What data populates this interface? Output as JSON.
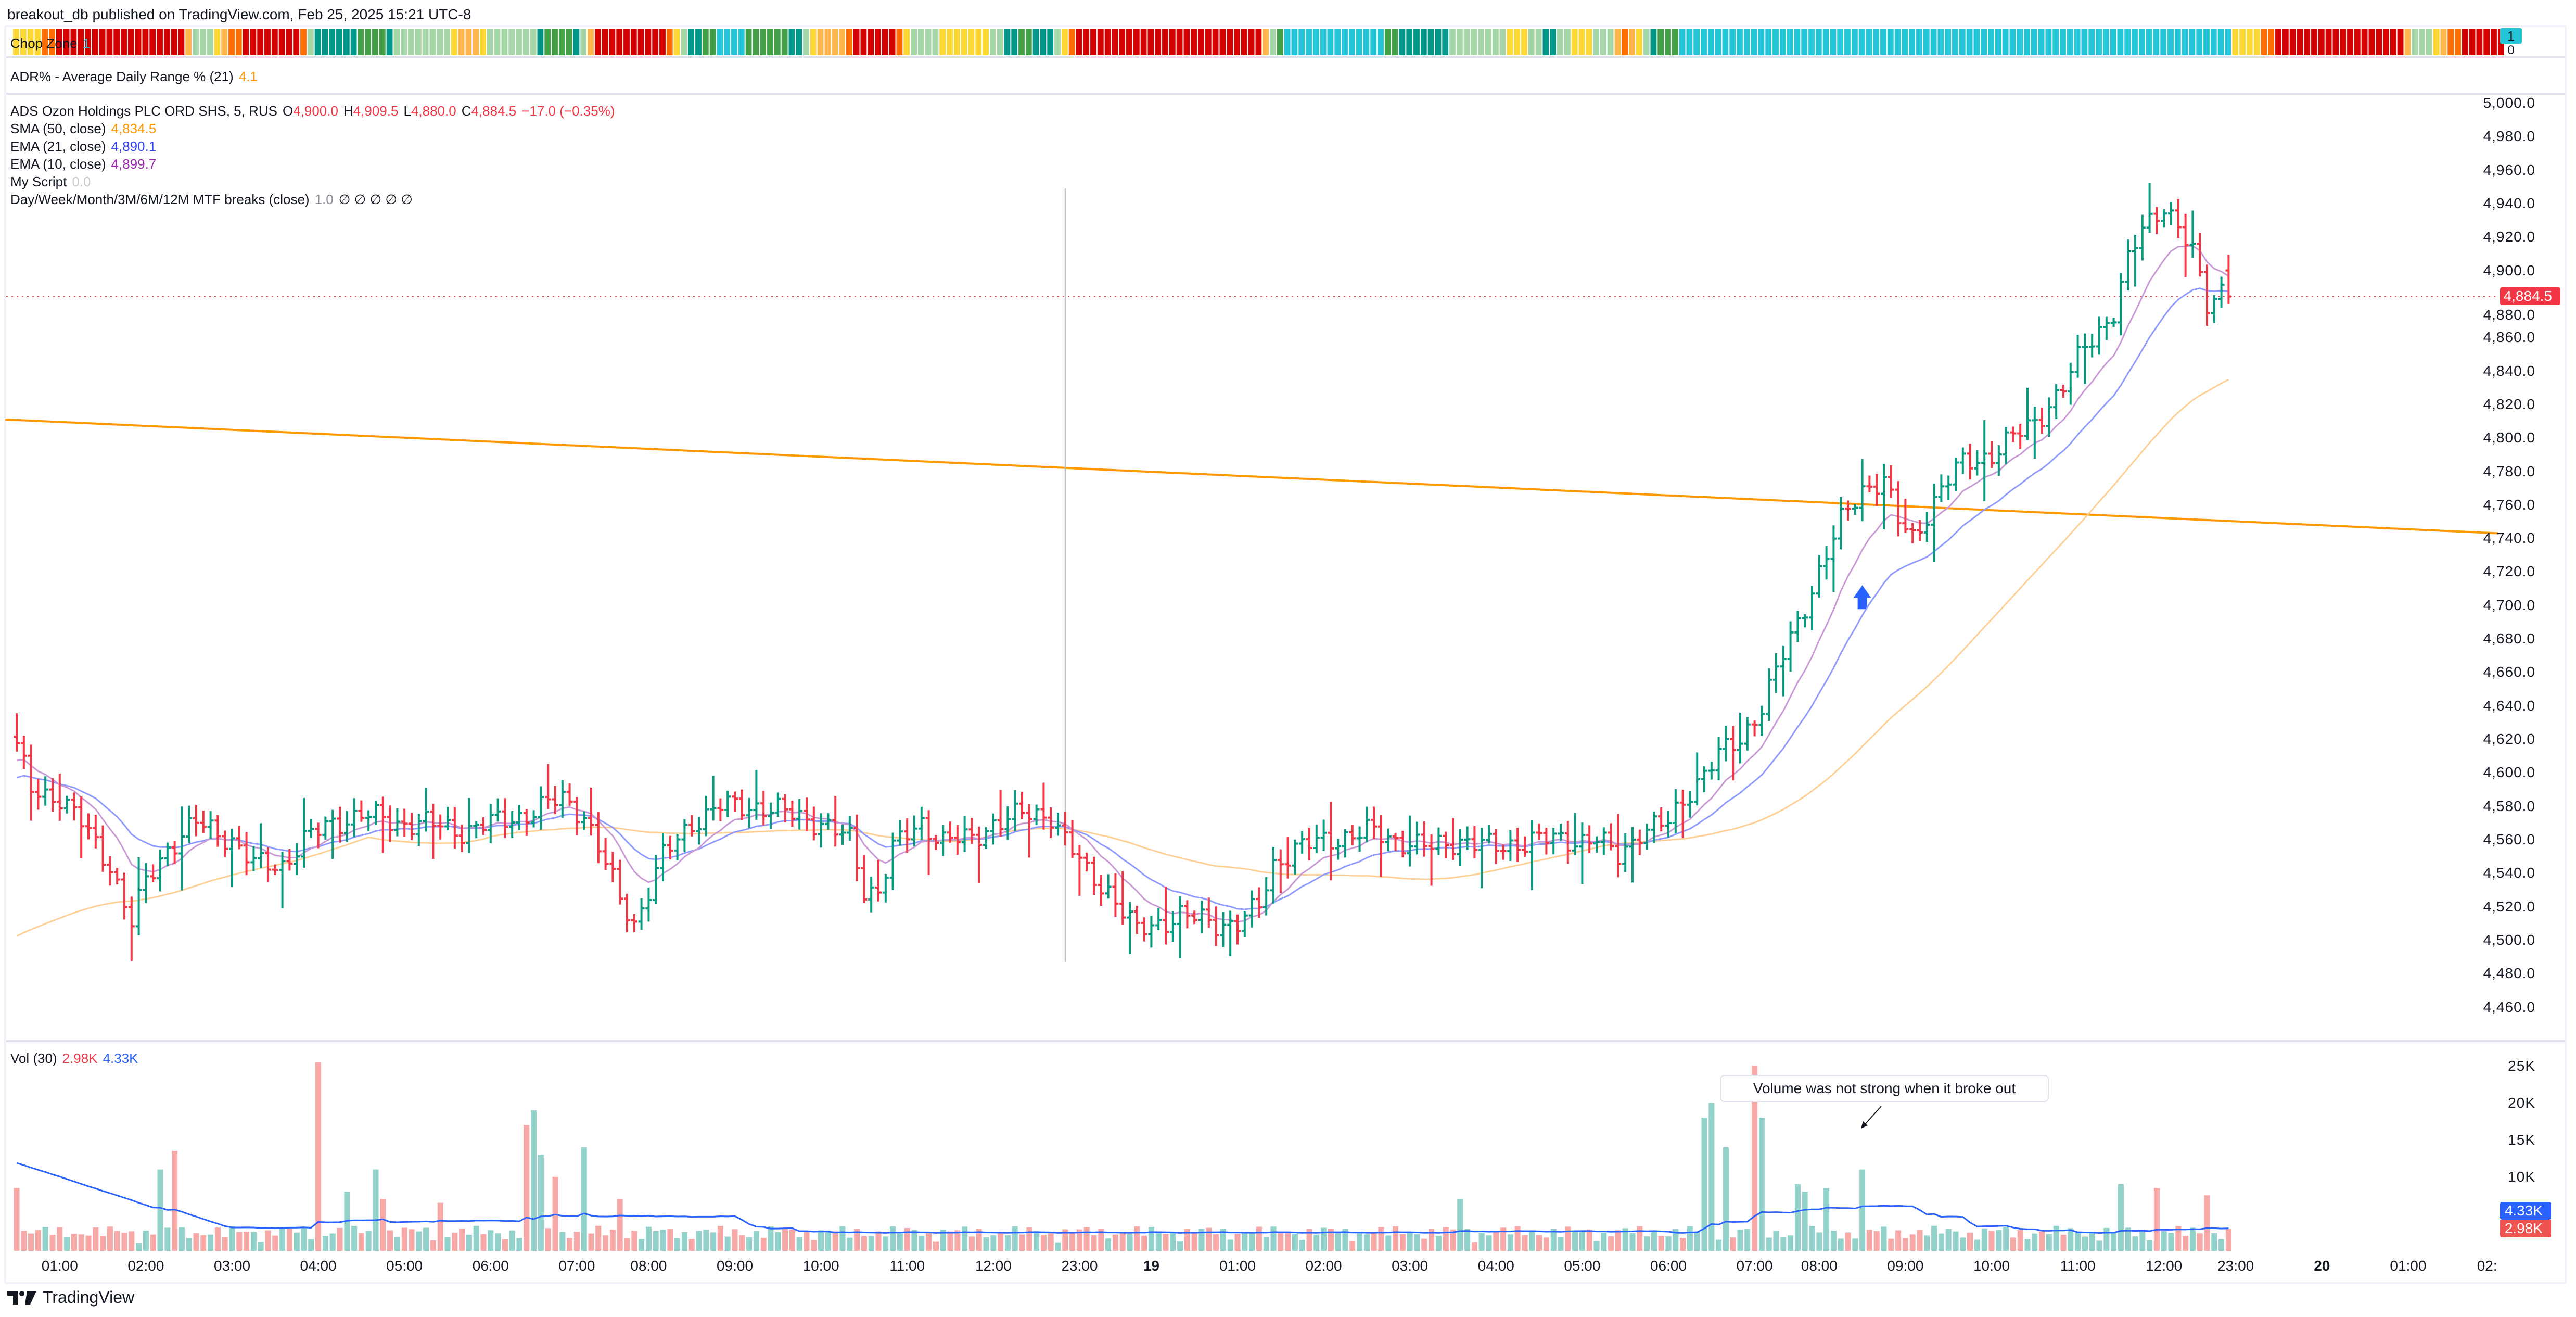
{
  "header": {
    "title": "breakout_db published on TradingView.com, Feb 25, 2025 15:21 UTC-8"
  },
  "chop_zone": {
    "label": "Chop Zone",
    "value": "1",
    "axis_top": "1",
    "axis_bottom": "0",
    "colors": {
      "cyan": "#26c6da",
      "dark_green": "#43a047",
      "teal": "#009688",
      "light_green": "#a5d6a7",
      "yellow": "#fdd835",
      "light_orange": "#ffb74d",
      "dark_orange": "#ff6d00",
      "red": "#d50000"
    }
  },
  "adr": {
    "label": "ADR% - Average Daily Range % (21)",
    "value": "4.1"
  },
  "legend": {
    "symbol": "ADS Ozon Holdings PLC ORD SHS, 5, RUS",
    "o_label": "O",
    "o": "4,900.0",
    "h_label": "H",
    "h": "4,909.5",
    "l_label": "L",
    "l": "4,880.0",
    "c_label": "C",
    "c": "4,884.5",
    "change": "−17.0 (−0.35%)",
    "sma50": {
      "label": "SMA (50, close)",
      "value": "4,834.5"
    },
    "ema21": {
      "label": "EMA (21, close)",
      "value": "4,890.1"
    },
    "ema10": {
      "label": "EMA (10, close)",
      "value": "4,899.7"
    },
    "my_script": {
      "label": "My Script",
      "value": "0.0"
    },
    "mtf": {
      "label": "Day/Week/Month/3M/6M/12M MTF breaks (close)",
      "value": "1.0",
      "flags": "∅ ∅ ∅ ∅ ∅"
    }
  },
  "price_axis": {
    "ticks": [
      5000,
      4980,
      4960,
      4940,
      4920,
      4900,
      4880,
      4860,
      4840,
      4820,
      4800,
      4780,
      4760,
      4740,
      4720,
      4700,
      4680,
      4660,
      4640,
      4620,
      4600,
      4580,
      4560,
      4540,
      4520,
      4500,
      4480,
      4460
    ],
    "tick_labels": [
      "5,000.0",
      "4,980.0",
      "4,960.0",
      "4,940.0",
      "4,920.0",
      "4,900.0",
      "4,880.0",
      "4,860.0",
      "4,840.0",
      "4,820.0",
      "4,800.0",
      "4,780.0",
      "4,760.0",
      "4,740.0",
      "4,720.0",
      "4,700.0",
      "4,680.0",
      "4,660.0",
      "4,640.0",
      "4,620.0",
      "4,600.0",
      "4,580.0",
      "4,560.0",
      "4,540.0",
      "4,520.0",
      "4,500.0",
      "4,480.0",
      "4,460.0"
    ],
    "last_price": "4,884.5"
  },
  "volume": {
    "label": "Vol (30)",
    "value": "2.98K",
    "ma_value": "4.33K",
    "ticks": [
      25000,
      20000,
      15000,
      10000
    ],
    "tick_labels": [
      "25K",
      "20K",
      "15K",
      "10K"
    ],
    "badge_ma": "4.33K",
    "badge_vol": "2.98K"
  },
  "annotation": {
    "text": "Volume was not strong when it broke out"
  },
  "time_axis": [
    {
      "label": "01:00",
      "bar": 6
    },
    {
      "label": "02:00",
      "bar": 18
    },
    {
      "label": "03:00",
      "bar": 30
    },
    {
      "label": "04:00",
      "bar": 42
    },
    {
      "label": "05:00",
      "bar": 54
    },
    {
      "label": "06:00",
      "bar": 66
    },
    {
      "label": "07:00",
      "bar": 78
    },
    {
      "label": "08:00",
      "bar": 88
    },
    {
      "label": "09:00",
      "bar": 100
    },
    {
      "label": "10:00",
      "bar": 112
    },
    {
      "label": "11:00",
      "bar": 124
    },
    {
      "label": "12:00",
      "bar": 136
    },
    {
      "label": "23:00",
      "bar": 148
    },
    {
      "label": "19",
      "bar": 158,
      "bold": true
    },
    {
      "label": "01:00",
      "bar": 170
    },
    {
      "label": "02:00",
      "bar": 182
    },
    {
      "label": "03:00",
      "bar": 194
    },
    {
      "label": "04:00",
      "bar": 206
    },
    {
      "label": "05:00",
      "bar": 218
    },
    {
      "label": "06:00",
      "bar": 230
    },
    {
      "label": "07:00",
      "bar": 242
    },
    {
      "label": "08:00",
      "bar": 251
    },
    {
      "label": "09:00",
      "bar": 263
    },
    {
      "label": "10:00",
      "bar": 275
    },
    {
      "label": "11:00",
      "bar": 287
    },
    {
      "label": "12:00",
      "bar": 299
    },
    {
      "label": "23:00",
      "bar": 309
    },
    {
      "label": "20",
      "bar": 321,
      "bold": true
    },
    {
      "label": "01:00",
      "bar": 333
    },
    {
      "label": "02:",
      "bar": 344
    }
  ],
  "footer": {
    "brand": "TradingView"
  },
  "chart_data": {
    "type": "ohlc-bar",
    "symbol": "ADS Ozon Holdings PLC ORD SHS, 5, RUS",
    "bar_count": 309,
    "ylim": [
      4450,
      5010
    ],
    "close_anchors": [
      [
        0,
        4615
      ],
      [
        2,
        4590
      ],
      [
        6,
        4585
      ],
      [
        9,
        4570
      ],
      [
        13,
        4545
      ],
      [
        16,
        4510
      ],
      [
        18,
        4535
      ],
      [
        21,
        4555
      ],
      [
        25,
        4570
      ],
      [
        30,
        4560
      ],
      [
        33,
        4545
      ],
      [
        37,
        4545
      ],
      [
        40,
        4560
      ],
      [
        44,
        4570
      ],
      [
        48,
        4575
      ],
      [
        53,
        4570
      ],
      [
        57,
        4570
      ],
      [
        62,
        4565
      ],
      [
        66,
        4570
      ],
      [
        71,
        4575
      ],
      [
        76,
        4585
      ],
      [
        79,
        4575
      ],
      [
        81,
        4555
      ],
      [
        84,
        4525
      ],
      [
        86,
        4510
      ],
      [
        88,
        4530
      ],
      [
        90,
        4550
      ],
      [
        94,
        4570
      ],
      [
        98,
        4580
      ],
      [
        103,
        4580
      ],
      [
        108,
        4575
      ],
      [
        112,
        4570
      ],
      [
        116,
        4560
      ],
      [
        118,
        4530
      ],
      [
        120,
        4530
      ],
      [
        122,
        4555
      ],
      [
        126,
        4570
      ],
      [
        129,
        4560
      ],
      [
        133,
        4560
      ],
      [
        136,
        4570
      ],
      [
        140,
        4575
      ],
      [
        144,
        4575
      ],
      [
        146,
        4560
      ],
      [
        149,
        4540
      ],
      [
        152,
        4530
      ],
      [
        156,
        4505
      ],
      [
        159,
        4510
      ],
      [
        162,
        4515
      ],
      [
        167,
        4510
      ],
      [
        170,
        4510
      ],
      [
        173,
        4520
      ],
      [
        175,
        4545
      ],
      [
        178,
        4555
      ],
      [
        183,
        4560
      ],
      [
        188,
        4565
      ],
      [
        192,
        4560
      ],
      [
        197,
        4555
      ],
      [
        201,
        4560
      ],
      [
        206,
        4555
      ],
      [
        211,
        4560
      ],
      [
        215,
        4560
      ],
      [
        220,
        4560
      ],
      [
        223,
        4550
      ],
      [
        226,
        4565
      ],
      [
        230,
        4570
      ],
      [
        233,
        4590
      ],
      [
        237,
        4610
      ],
      [
        240,
        4620
      ],
      [
        243,
        4640
      ],
      [
        246,
        4670
      ],
      [
        249,
        4700
      ],
      [
        252,
        4730
      ],
      [
        254,
        4750
      ],
      [
        257,
        4770
      ],
      [
        260,
        4775
      ],
      [
        262,
        4750
      ],
      [
        264,
        4740
      ],
      [
        268,
        4770
      ],
      [
        271,
        4785
      ],
      [
        275,
        4790
      ],
      [
        278,
        4800
      ],
      [
        281,
        4810
      ],
      [
        285,
        4830
      ],
      [
        288,
        4855
      ],
      [
        292,
        4875
      ],
      [
        294,
        4905
      ],
      [
        296,
        4925
      ],
      [
        299,
        4940
      ],
      [
        301,
        4925
      ],
      [
        303,
        4910
      ],
      [
        305,
        4880
      ],
      [
        307,
        4890
      ],
      [
        308,
        4884.5
      ]
    ],
    "last_bar": {
      "open": 4900.0,
      "high": 4909.5,
      "low": 4880.0,
      "close": 4884.5
    },
    "volume_spikes": [
      [
        0,
        8500
      ],
      [
        20,
        11000
      ],
      [
        22,
        13500
      ],
      [
        42,
        25500
      ],
      [
        46,
        8000
      ],
      [
        50,
        11000
      ],
      [
        51,
        7000
      ],
      [
        59,
        6500
      ],
      [
        71,
        17000
      ],
      [
        72,
        19000
      ],
      [
        73,
        13000
      ],
      [
        75,
        10000
      ],
      [
        79,
        14000
      ],
      [
        84,
        7000
      ],
      [
        201,
        7000
      ],
      [
        235,
        18000
      ],
      [
        236,
        20000
      ],
      [
        238,
        14000
      ],
      [
        242,
        25000
      ],
      [
        243,
        18000
      ],
      [
        248,
        9000
      ],
      [
        249,
        8000
      ],
      [
        252,
        8500
      ],
      [
        257,
        11000
      ],
      [
        293,
        9000
      ],
      [
        298,
        8500
      ],
      [
        305,
        7500
      ],
      [
        308,
        2980
      ]
    ],
    "indicators": {
      "sma50_last": 4834.5,
      "ema21_last": 4890.1,
      "ema10_last": 4899.7,
      "vol_ma30_last": 4330
    },
    "trendline": [
      [
        -1.6,
        4811
      ],
      [
        345.5,
        4743
      ]
    ],
    "vertical_marker": {
      "bar": 146,
      "from_price": 4949,
      "to_price": 4487
    },
    "arrow_marker": {
      "bar": 257,
      "price": 4712,
      "direction": "up"
    },
    "colors": {
      "up": "#089981",
      "down": "#f23645",
      "vol_up": "#92d2cb",
      "vol_down": "#f7a9a7",
      "ema10": "#c99ad6",
      "ema21": "#8f9bff",
      "sma50": "#ffd095",
      "vol_ma": "#2962ff",
      "trendline": "#ff9800",
      "arrow": "#2962ff"
    }
  }
}
